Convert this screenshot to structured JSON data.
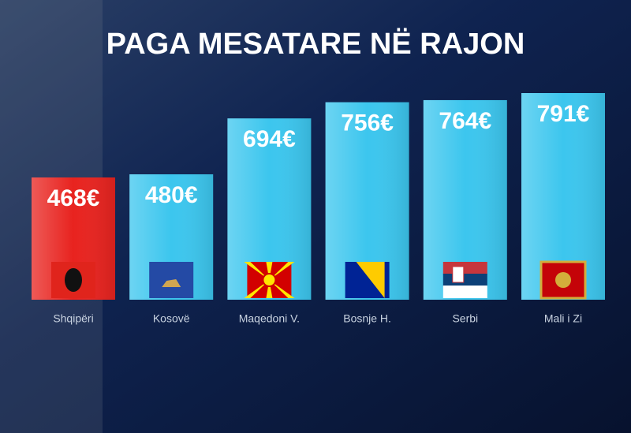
{
  "chart_data": {
    "type": "bar",
    "title": "PAGA MESATARE NË RAJON",
    "categories": [
      "Shqipëri",
      "Kosovë",
      "Maqedoni V.",
      "Bosnje H.",
      "Serbi",
      "Mali i Zi"
    ],
    "values": [
      468,
      480,
      694,
      756,
      764,
      791
    ],
    "value_labels": [
      "468€",
      "480€",
      "694€",
      "756€",
      "764€",
      "791€"
    ],
    "colors": [
      "#e8231f",
      "#3cc6ee",
      "#3cc6ee",
      "#3cc6ee",
      "#3cc6ee",
      "#3cc6ee"
    ]
  }
}
